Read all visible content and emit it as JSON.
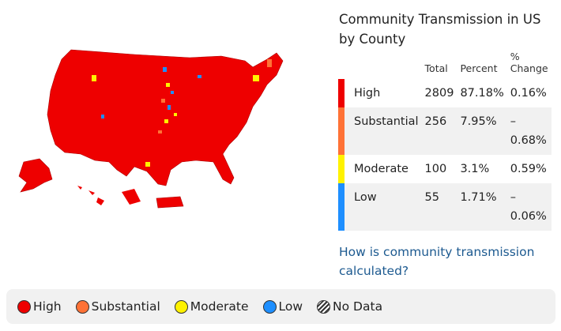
{
  "title": "Community Transmission in US by County",
  "table": {
    "headers": {
      "total": "Total",
      "percent": "Percent",
      "change": "% Change"
    },
    "rows": [
      {
        "label": "High",
        "total": "2809",
        "percent": "87.18%",
        "change": "0.16%",
        "color": "#ee0000"
      },
      {
        "label": "Substantial",
        "total": "256",
        "percent": "7.95%",
        "change": "– 0.68%",
        "color": "#ff7236"
      },
      {
        "label": "Moderate",
        "total": "100",
        "percent": "3.1%",
        "change": "0.59%",
        "color": "#fff200"
      },
      {
        "label": "Low",
        "total": "55",
        "percent": "1.71%",
        "change": "– 0.06%",
        "color": "#1e8fff"
      }
    ]
  },
  "link": "How is community transmission calculated?",
  "legend": [
    {
      "label": "High",
      "color": "#ee0000"
    },
    {
      "label": "Substantial",
      "color": "#ff7236"
    },
    {
      "label": "Moderate",
      "color": "#fff200"
    },
    {
      "label": "Low",
      "color": "#1e8fff"
    },
    {
      "label": "No Data",
      "color": "hatch"
    }
  ]
}
